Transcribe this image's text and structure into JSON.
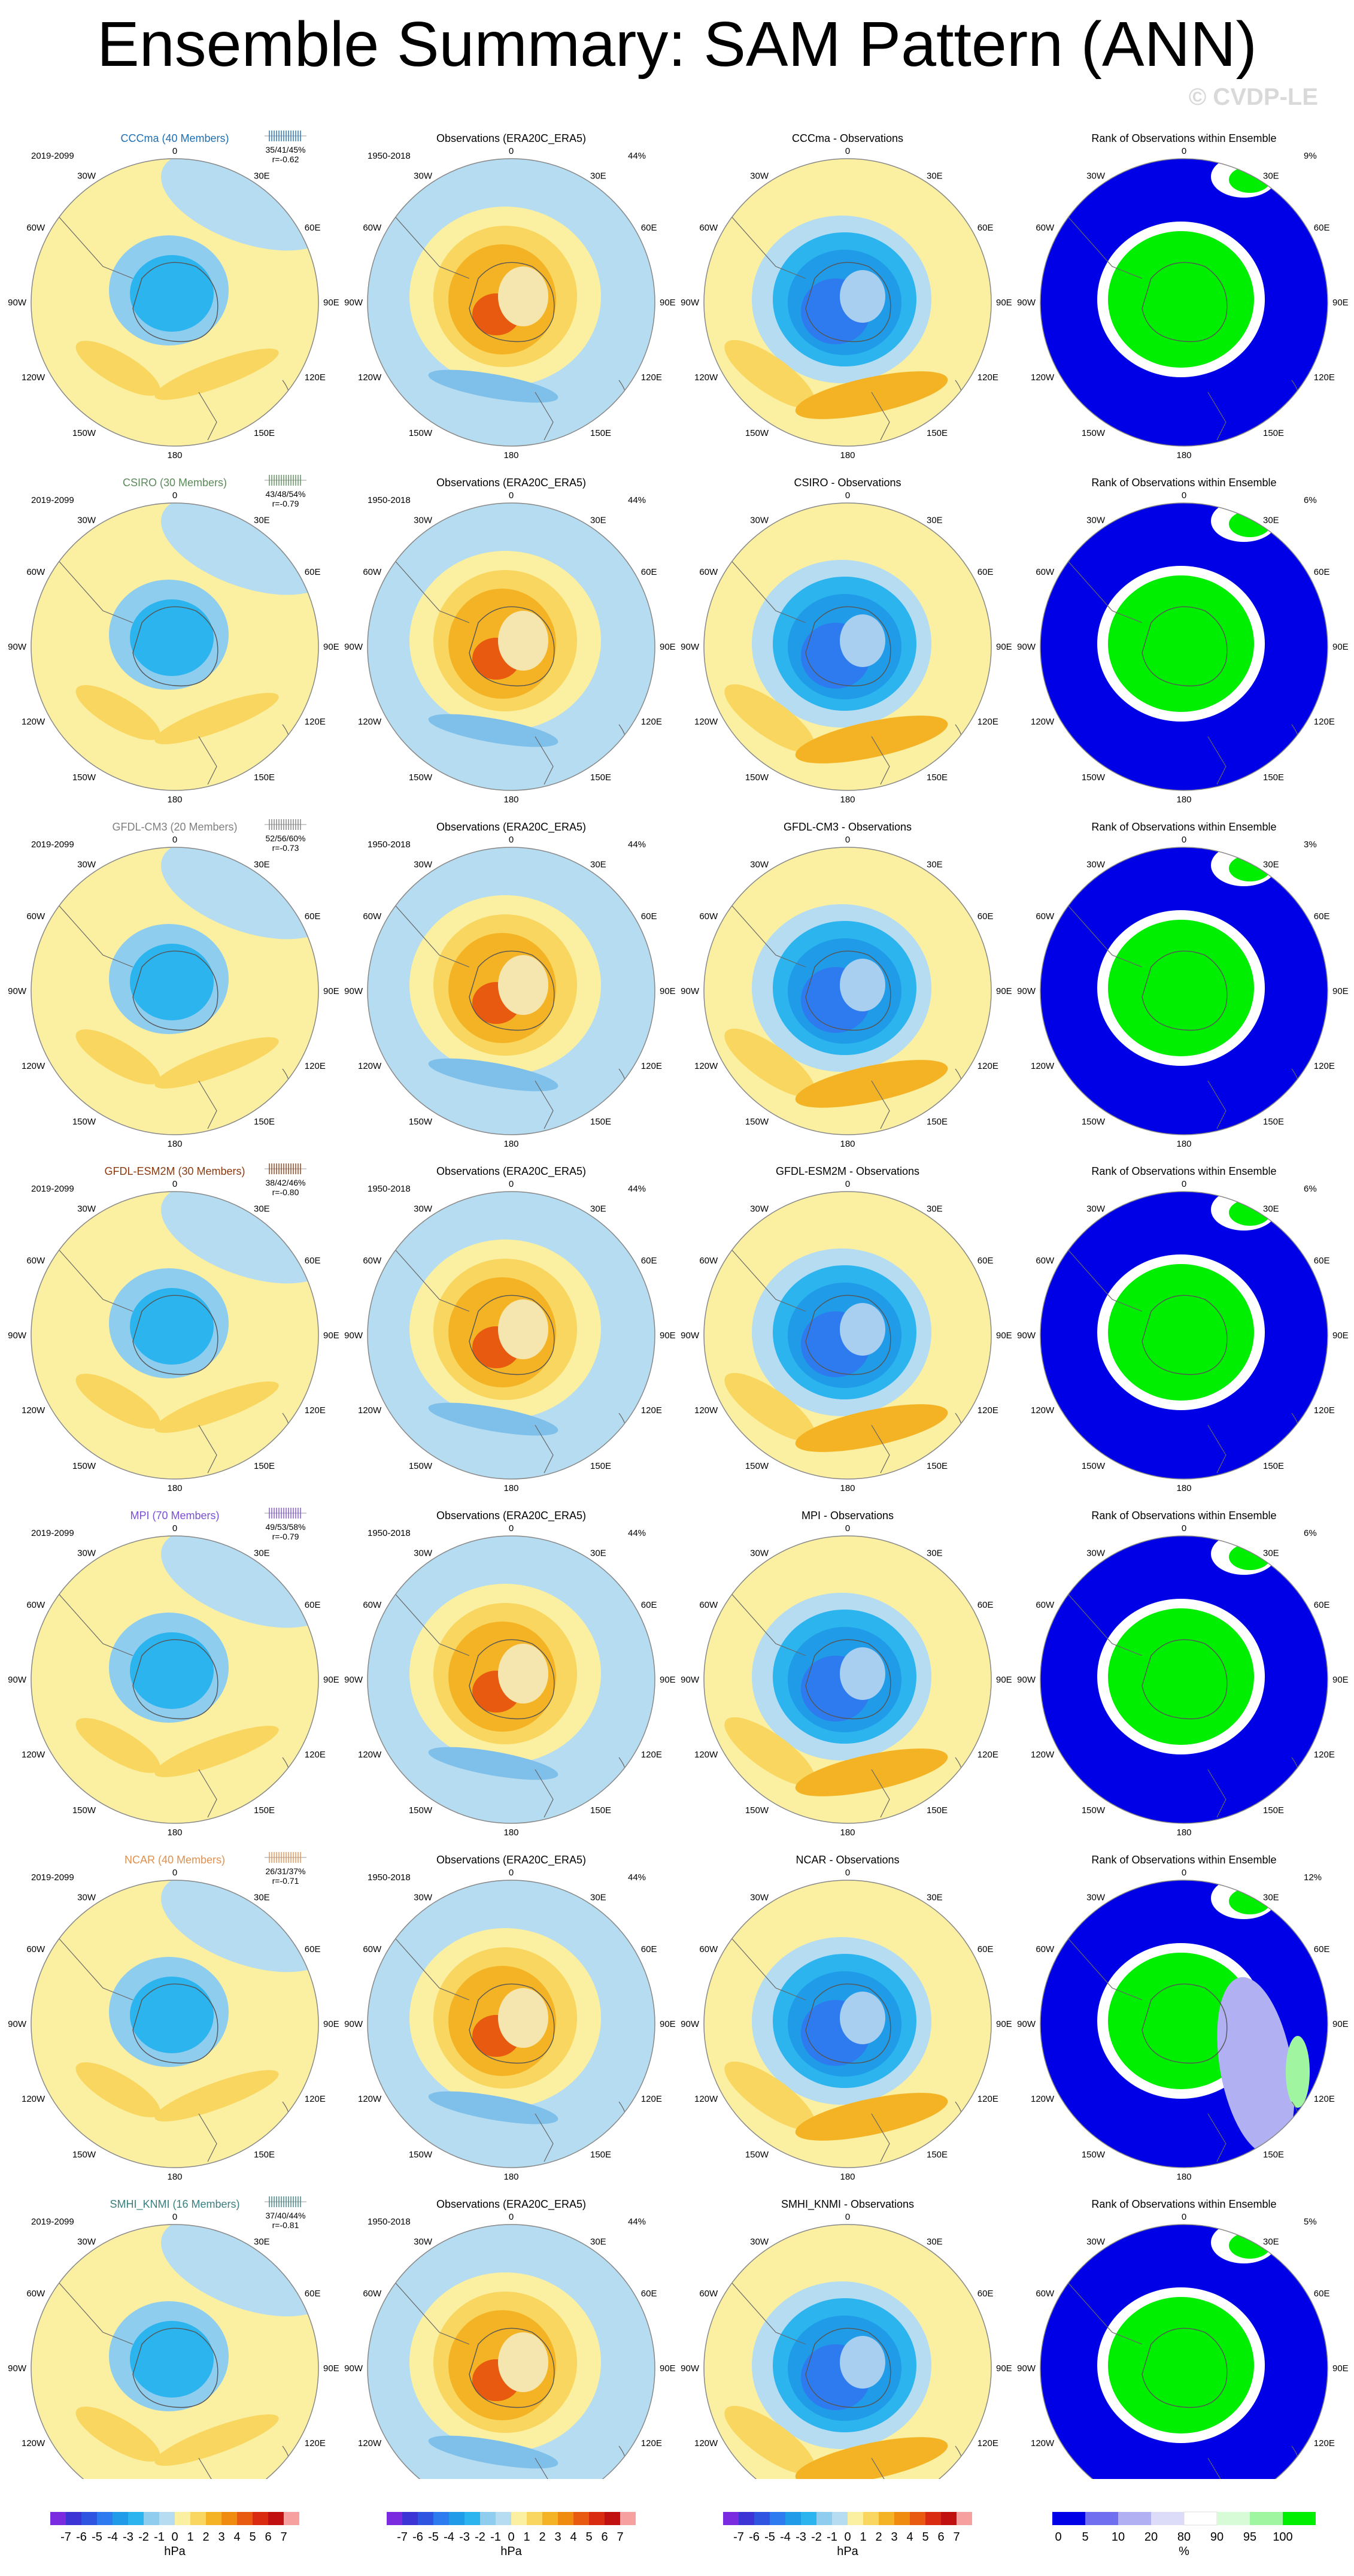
{
  "title": "Ensemble Summary: SAM Pattern (ANN)",
  "watermark": "© CVDP-LE",
  "obs_title": "Observations (ERA20C_ERA5)",
  "obs_period": "1950-2018",
  "obs_pct": "44%",
  "rank_title": "Rank of Observations within Ensemble",
  "model_period": "2019-2099",
  "map_labels": {
    "top": "0",
    "bottom": "180",
    "upper_left": "30W",
    "upper_right": "30E",
    "mid_left_upper": "60W",
    "mid_right_upper": "60E",
    "left": "90W",
    "right": "90E",
    "mid_left_lower": "120W",
    "mid_right_lower": "120E",
    "lower_left": "150W",
    "lower_right": "150E"
  },
  "colors": {
    "model_title_colors": [
      "#1f6fb4",
      "#5a8a5a",
      "#7f7f7f",
      "#8b3a0f",
      "#7a4fd6",
      "#e0904f",
      "#3a7f7f"
    ],
    "ocean_blue": "#b5dcf0",
    "positive_yellow": "#fbf0a1",
    "rank_blue": "#0000e6",
    "rank_green": "#00ee00"
  },
  "rows": [
    {
      "model": "CCCma (40 Members)",
      "stats": "35/41/45%",
      "r": "r=-0.62",
      "diff_title": "CCCma - Observations",
      "rank_pct": "9%"
    },
    {
      "model": "CSIRO (30 Members)",
      "stats": "43/48/54%",
      "r": "r=-0.79",
      "diff_title": "CSIRO - Observations",
      "rank_pct": "6%"
    },
    {
      "model": "GFDL-CM3 (20 Members)",
      "stats": "52/56/60%",
      "r": "r=-0.73",
      "diff_title": "GFDL-CM3 - Observations",
      "rank_pct": "3%"
    },
    {
      "model": "GFDL-ESM2M (30 Members)",
      "stats": "38/42/46%",
      "r": "r=-0.80",
      "diff_title": "GFDL-ESM2M - Observations",
      "rank_pct": "6%"
    },
    {
      "model": "MPI (70 Members)",
      "stats": "49/53/58%",
      "r": "r=-0.79",
      "diff_title": "MPI - Observations",
      "rank_pct": "6%"
    },
    {
      "model": "NCAR (40 Members)",
      "stats": "26/31/37%",
      "r": "r=-0.71",
      "diff_title": "NCAR - Observations",
      "rank_pct": "12%"
    },
    {
      "model": "SMHI_KNMI (16 Members)",
      "stats": "37/40/44%",
      "r": "r=-0.81",
      "diff_title": "SMHI_KNMI - Observations",
      "rank_pct": "5%"
    }
  ],
  "colorbar_hpa": {
    "labels": [
      "-7",
      "-6",
      "-5",
      "-4",
      "-3",
      "-2",
      "-1",
      "0",
      "1",
      "2",
      "3",
      "4",
      "5",
      "6",
      "7"
    ],
    "unit": "hPa",
    "colors": [
      "#7a2be0",
      "#3d34d6",
      "#2f55e0",
      "#2e7bf0",
      "#1f9be8",
      "#2bb4ee",
      "#8fcdee",
      "#b5dcf0",
      "#fbf0a1",
      "#f8d65f",
      "#f4b324",
      "#ef8c0f",
      "#e85a10",
      "#d92b10",
      "#c01010",
      "#f7a0a0"
    ]
  },
  "colorbar_rank": {
    "labels": [
      "0",
      "5",
      "10",
      "20",
      "80",
      "90",
      "95",
      "100"
    ],
    "unit": "%",
    "colors": [
      "#0000e6",
      "#6f6fef",
      "#b0b0f3",
      "#dcdcf8",
      "#ffffff",
      "#d6fbd6",
      "#a0f5a0",
      "#00ee00"
    ]
  }
}
